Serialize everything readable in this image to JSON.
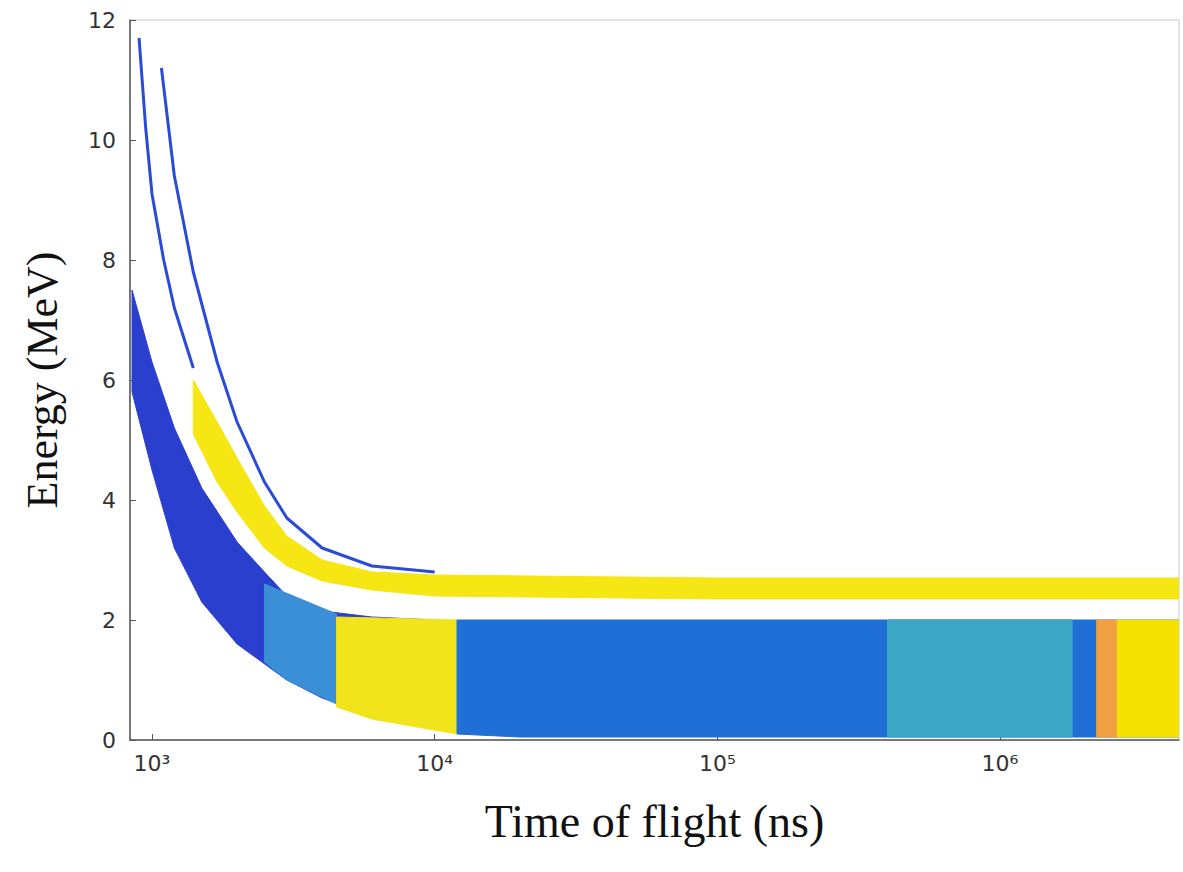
{
  "chart_data": {
    "type": "scatter",
    "x_label": "Time of flight (ns)",
    "y_label": "Energy (MeV)",
    "log": "x",
    "grid": false,
    "xlim": [
      836,
      4300000
    ],
    "ylim": [
      0,
      12
    ],
    "xticks": [
      {
        "value": 1000,
        "label": "10³"
      },
      {
        "value": 10000,
        "label": "10⁴"
      },
      {
        "value": 100000,
        "label": "10⁵"
      },
      {
        "value": 1000000,
        "label": "10⁶"
      }
    ],
    "yticks": [
      0,
      2,
      4,
      6,
      8,
      10,
      12
    ],
    "series": [
      {
        "type": "area",
        "color": "#2b3fcf",
        "x": [
          850,
          1000,
          1200,
          1500,
          2000,
          2500,
          3000,
          4000,
          6000,
          10000,
          10000,
          6000,
          4000,
          3000,
          2000,
          1500,
          1200,
          1000,
          850
        ],
        "values": [
          7.5,
          6.3,
          5.2,
          4.2,
          3.3,
          2.8,
          2.4,
          2.15,
          2.05,
          2.0,
          0.2,
          0.4,
          0.7,
          1.0,
          1.6,
          2.3,
          3.2,
          4.5,
          5.8
        ]
      },
      {
        "type": "area",
        "color": "#3b8fd6",
        "x": [
          2500,
          4500,
          4500,
          3000,
          2500
        ],
        "values": [
          2.6,
          2.1,
          0.6,
          1.0,
          1.3
        ]
      },
      {
        "type": "area",
        "color": "#f2e41a",
        "x": [
          4500,
          12000,
          12000,
          6000,
          4500
        ],
        "values": [
          2.05,
          2.0,
          0.1,
          0.35,
          0.55
        ]
      },
      {
        "type": "area",
        "color": "#1f6fd6",
        "x": [
          12000,
          4300000,
          4300000,
          20000,
          12000
        ],
        "values": [
          2.0,
          2.0,
          0.05,
          0.05,
          0.1
        ]
      },
      {
        "type": "area",
        "color": "#3aa8c4",
        "x": [
          400000,
          1800000,
          1800000,
          400000
        ],
        "values": [
          2.0,
          2.0,
          0.05,
          0.05
        ]
      },
      {
        "type": "area",
        "color": "#f0a040",
        "x": [
          2200000,
          2600000,
          2600000,
          2200000
        ],
        "values": [
          2.0,
          2.0,
          0.05,
          0.05
        ]
      },
      {
        "type": "area",
        "color": "#f5e000",
        "x": [
          2600000,
          4300000,
          4300000,
          2600000
        ],
        "values": [
          2.0,
          2.0,
          0.05,
          0.05
        ]
      },
      {
        "type": "area",
        "color": "#f5e614",
        "x": [
          1400,
          1700,
          2000,
          2500,
          3000,
          4000,
          6000,
          10000,
          100000,
          4300000,
          4300000,
          100000,
          10000,
          6000,
          4000,
          3000,
          2500,
          2000,
          1700,
          1400
        ],
        "values": [
          6.0,
          5.3,
          4.7,
          3.9,
          3.4,
          3.0,
          2.8,
          2.75,
          2.7,
          2.7,
          2.35,
          2.35,
          2.4,
          2.5,
          2.65,
          2.9,
          3.2,
          3.8,
          4.3,
          5.1
        ]
      },
      {
        "type": "line",
        "color": "#2a4bd7",
        "x": [
          1080,
          1200,
          1400,
          1700,
          2000,
          2500,
          3000,
          4000,
          6000,
          10000
        ],
        "values": [
          11.2,
          9.4,
          7.8,
          6.3,
          5.3,
          4.3,
          3.7,
          3.2,
          2.9,
          2.8
        ]
      },
      {
        "type": "line",
        "color": "#2a4bd7",
        "x": [
          900,
          950,
          1000,
          1100,
          1200,
          1400
        ],
        "values": [
          11.7,
          10.2,
          9.1,
          8.0,
          7.2,
          6.2
        ]
      }
    ]
  }
}
